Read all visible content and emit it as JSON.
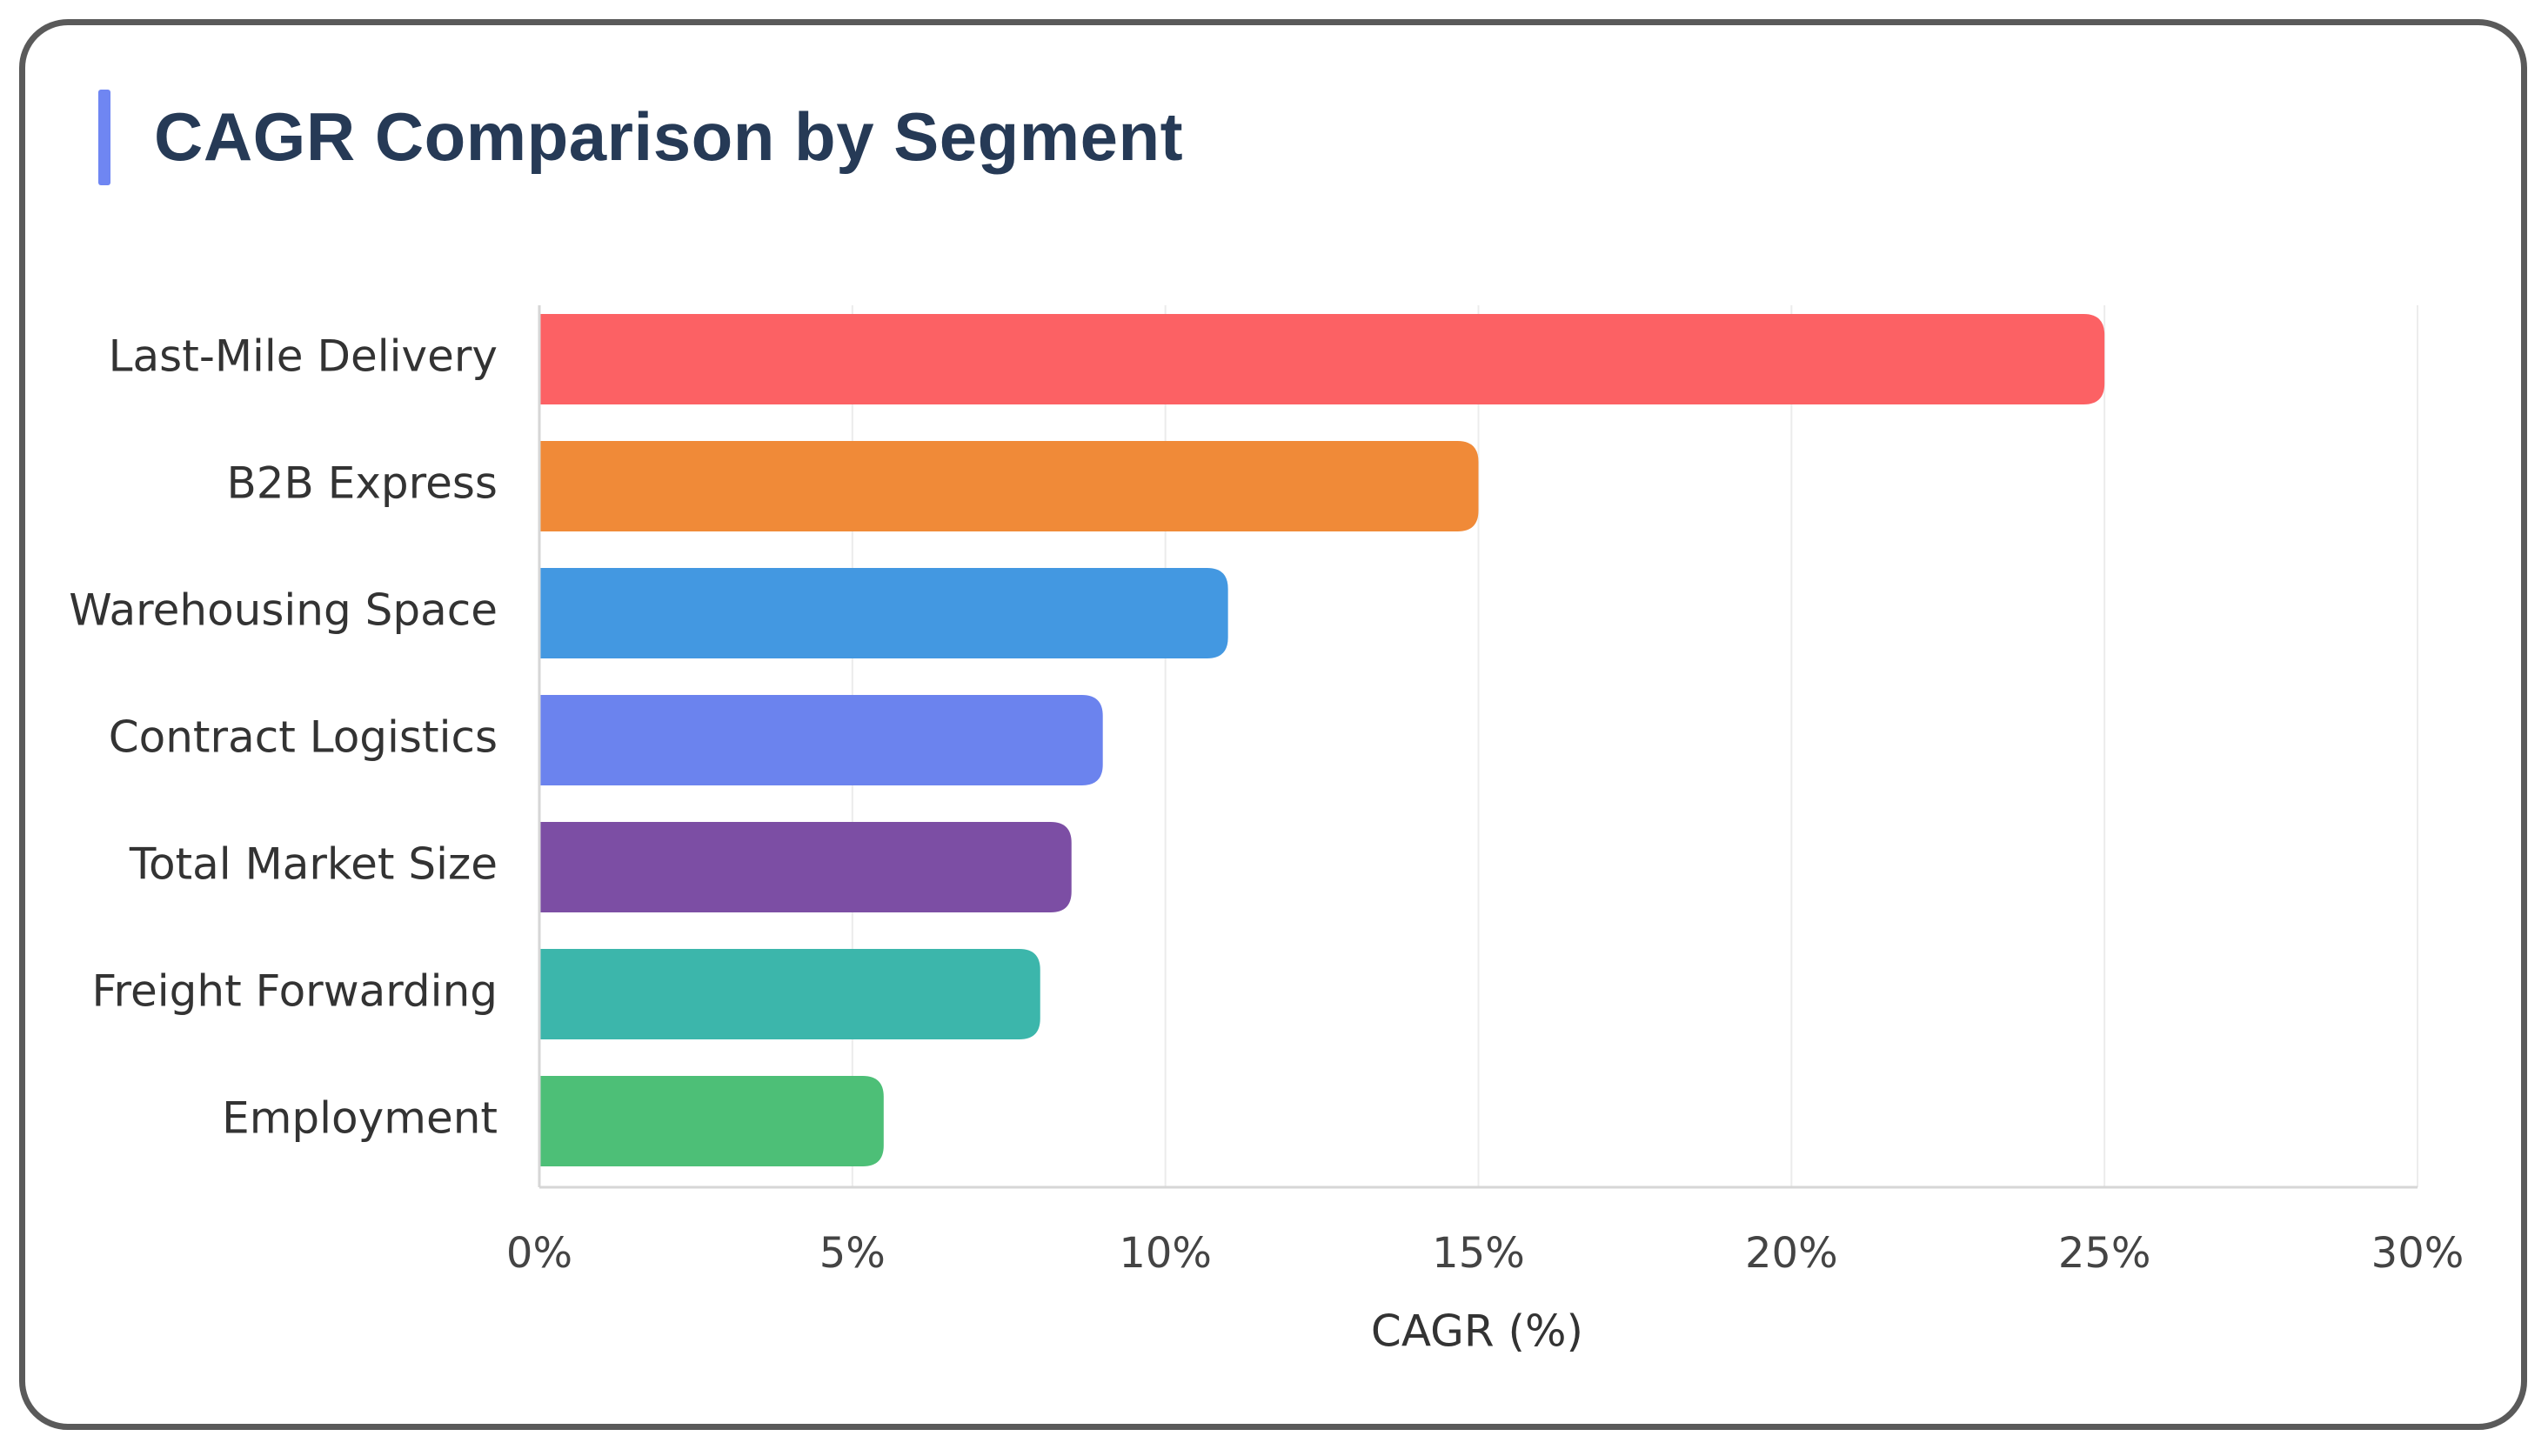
{
  "chart_data": {
    "type": "bar",
    "orientation": "horizontal",
    "title": "CAGR Comparison by Segment",
    "xlabel": "CAGR (%)",
    "ylabel": "",
    "categories": [
      "Last-Mile Delivery",
      "B2B Express",
      "Warehousing Space",
      "Contract Logistics",
      "Total Market Size",
      "Freight Forwarding",
      "Employment"
    ],
    "values": [
      25,
      15,
      11,
      9,
      8.5,
      8,
      5.5
    ],
    "xlim": [
      0,
      30
    ],
    "xticks": [
      0,
      5,
      10,
      15,
      20,
      25,
      30
    ],
    "xtick_labels": [
      "0%",
      "5%",
      "10%",
      "15%",
      "20%",
      "25%",
      "30%"
    ],
    "grid": "vertical",
    "legend": "none",
    "colors": [
      "#fc6164",
      "#f08a38",
      "#4398e1",
      "#6b83ee",
      "#7c4ea4",
      "#3cb6ab",
      "#4dbf77"
    ],
    "title_accent_color": "#6f86f2",
    "title_color": "#263a56"
  }
}
